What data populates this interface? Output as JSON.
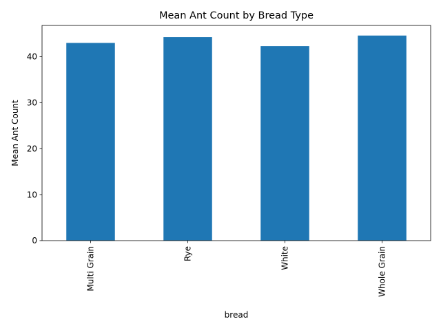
{
  "chart_data": {
    "type": "bar",
    "title": "Mean Ant Count by Bread Type",
    "xlabel": "bread",
    "ylabel": "Mean Ant Count",
    "categories": [
      "Multi Grain",
      "Rye",
      "White",
      "Whole Grain"
    ],
    "values": [
      43.0,
      44.25,
      42.3,
      44.6
    ],
    "ylim": [
      0,
      46.8
    ],
    "yticks": [
      0,
      10,
      20,
      30,
      40
    ],
    "grid": false,
    "legend": "none",
    "bar_color": "#1f77b4"
  }
}
